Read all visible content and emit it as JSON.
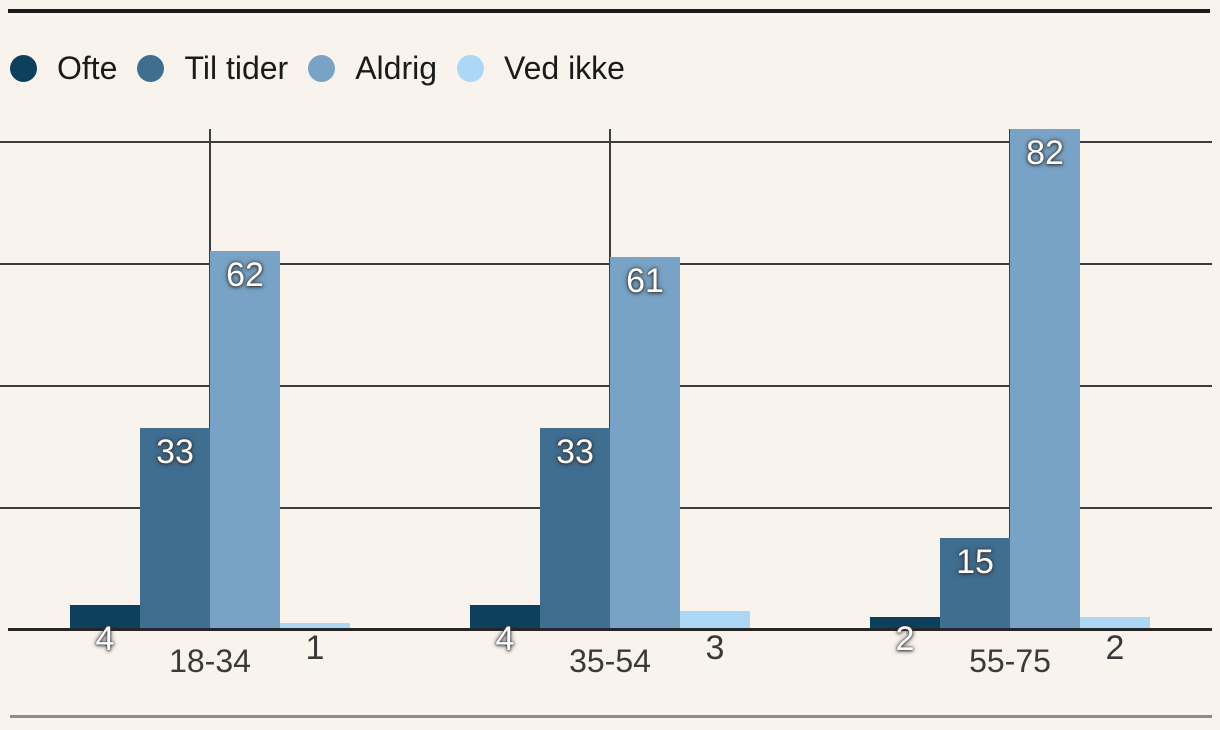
{
  "chart_data": {
    "type": "bar",
    "title": "",
    "categories": [
      "18-34",
      "35-54",
      "55-75"
    ],
    "series": [
      {
        "name": "Ofte",
        "color": "#0d405c",
        "label_style": "light",
        "values": [
          4,
          4,
          2
        ]
      },
      {
        "name": "Til tider",
        "color": "#3f6e90",
        "label_style": "light",
        "values": [
          33,
          33,
          15
        ]
      },
      {
        "name": "Aldrig",
        "color": "#79a3c6",
        "label_style": "light",
        "values": [
          62,
          61,
          82
        ]
      },
      {
        "name": "Ved ikke",
        "color": "#acd7f5",
        "label_style": "dark",
        "values": [
          1,
          3,
          2
        ]
      }
    ],
    "ylim": [
      0,
      82
    ],
    "gridline_values": [
      0,
      20,
      40,
      60,
      80
    ],
    "grid": true,
    "legend_position": "top",
    "value_labels_shown": true
  },
  "colors": {
    "background": "#f8f3ec",
    "gridline": "#3d3d3d",
    "axis": "#262626",
    "top_rule": "#1a1a1a",
    "bottom_rule": "#8d8d8d",
    "legend_text": "#1a1a1a",
    "category_text": "#3a3a3a",
    "value_label_light": "#ffffff",
    "value_label_dark": "#383838"
  }
}
